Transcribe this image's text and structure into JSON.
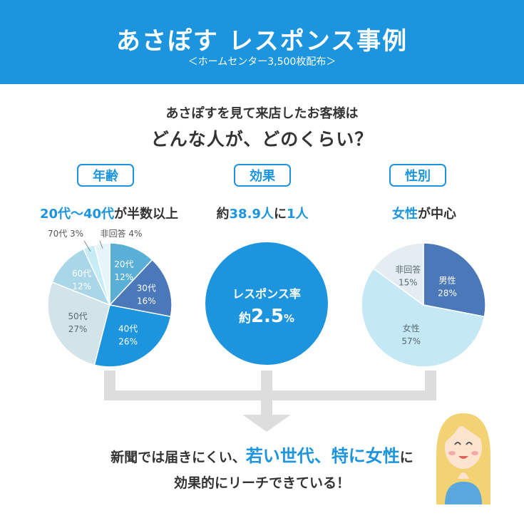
{
  "header": {
    "title": "あさぽす レスポンス事例",
    "subtitle": "＜ホームセンター3,500枚配布＞"
  },
  "question": {
    "line1": "あさぽすを見て来店したお客様は",
    "line2": "どんな人が、どのくらい？"
  },
  "panels": {
    "age": {
      "tag": "年齢",
      "h_a": "20代〜40代",
      "h_b": "が半数以上"
    },
    "effect": {
      "tag": "効果",
      "h_a": "約",
      "h_b": "38.9人",
      "h_c": "に",
      "h_d": "1人",
      "circle_line1": "レスポンス率",
      "circle_pre": "約",
      "circle_value": "2.5",
      "circle_unit": "%"
    },
    "gender": {
      "tag": "性別",
      "h_a": "女性",
      "h_b": "が中心"
    }
  },
  "conclusion": {
    "l1_a": "新聞では届きにくい、",
    "l1_b": "若い世代、特に女性",
    "l1_c": "に",
    "l2": "効果的にリーチできている！"
  },
  "chart_data": [
    {
      "type": "pie",
      "title": "年齢",
      "slices": [
        {
          "label": "20代",
          "value": 12,
          "value_text": "12%",
          "color": "#5aafd6",
          "label_color": "#ffffff"
        },
        {
          "label": "30代",
          "value": 16,
          "value_text": "16%",
          "color": "#4a78b8",
          "label_color": "#ffffff"
        },
        {
          "label": "40代",
          "value": 26,
          "value_text": "26%",
          "color": "#1c95de",
          "label_color": "#ffffff"
        },
        {
          "label": "50代",
          "value": 27,
          "value_text": "27%",
          "color": "#d3e3ea",
          "label_color": "#5a6a72"
        },
        {
          "label": "60代",
          "value": 12,
          "value_text": "12%",
          "color": "#a9d7e8",
          "label_color": "#ffffff"
        },
        {
          "label": "70代",
          "value": 3,
          "value_text": "3%",
          "color": "#c6ecf5",
          "label_color": "#555555"
        },
        {
          "label": "非回答",
          "value": 4,
          "value_text": "4%",
          "color": "#e6f5fa",
          "label_color": "#555555"
        }
      ]
    },
    {
      "type": "pie",
      "title": "性別",
      "slices": [
        {
          "label": "男性",
          "value": 28,
          "value_text": "28%",
          "color": "#4a78b8",
          "label_color": "#ffffff"
        },
        {
          "label": "女性",
          "value": 57,
          "value_text": "57%",
          "color": "#c4e8f4",
          "label_color": "#5a6a72"
        },
        {
          "label": "非回答",
          "value": 15,
          "value_text": "15%",
          "color": "#e3edf2",
          "label_color": "#5a6a72"
        }
      ]
    }
  ],
  "colors": {
    "brand_blue": "#1c95de",
    "connector_gray": "#dddddd"
  },
  "icons": [
    "woman-avatar-icon"
  ]
}
